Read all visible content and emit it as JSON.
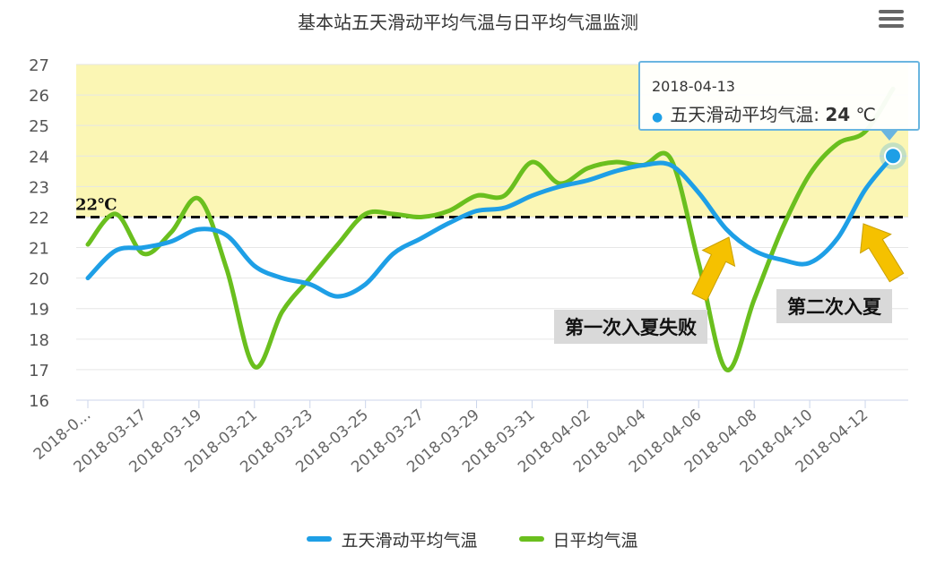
{
  "chart_data": {
    "type": "line",
    "title": "基本站五天滑动平均气温与日平均气温监测",
    "x": [
      "2018-03-15",
      "2018-03-16",
      "2018-03-17",
      "2018-03-18",
      "2018-03-19",
      "2018-03-20",
      "2018-03-21",
      "2018-03-22",
      "2018-03-23",
      "2018-03-24",
      "2018-03-25",
      "2018-03-26",
      "2018-03-27",
      "2018-03-28",
      "2018-03-29",
      "2018-03-30",
      "2018-03-31",
      "2018-04-01",
      "2018-04-02",
      "2018-04-03",
      "2018-04-04",
      "2018-04-05",
      "2018-04-06",
      "2018-04-07",
      "2018-04-08",
      "2018-04-09",
      "2018-04-10",
      "2018-04-11",
      "2018-04-12",
      "2018-04-13"
    ],
    "x_tick_labels": [
      "2018-0...",
      "2018-03-17",
      "2018-03-19",
      "2018-03-21",
      "2018-03-23",
      "2018-03-25",
      "2018-03-27",
      "2018-03-29",
      "2018-03-31",
      "2018-04-02",
      "2018-04-04",
      "2018-04-06",
      "2018-04-08",
      "2018-04-10",
      "2018-04-12"
    ],
    "ylim": [
      16,
      27
    ],
    "yticks": [
      16,
      17,
      18,
      19,
      20,
      21,
      22,
      23,
      24,
      25,
      26,
      27
    ],
    "series": [
      {
        "name": "五天滑动平均气温",
        "color": "#1e9fe6",
        "values": [
          20.0,
          20.9,
          21.0,
          21.2,
          21.6,
          21.4,
          20.4,
          20.0,
          19.8,
          19.4,
          19.8,
          20.8,
          21.3,
          21.8,
          22.2,
          22.3,
          22.7,
          23.0,
          23.2,
          23.5,
          23.7,
          23.7,
          22.8,
          21.6,
          20.9,
          20.6,
          20.5,
          21.3,
          22.9,
          24.0
        ]
      },
      {
        "name": "日平均气温",
        "color": "#6abf1e",
        "values": [
          21.1,
          22.1,
          20.8,
          21.5,
          22.6,
          20.3,
          17.1,
          18.9,
          20.0,
          21.1,
          22.1,
          22.1,
          22.0,
          22.2,
          22.7,
          22.7,
          23.8,
          23.1,
          23.6,
          23.8,
          23.7,
          23.9,
          20.5,
          17.0,
          19.3,
          21.6,
          23.4,
          24.4,
          24.8,
          26.2
        ]
      }
    ],
    "threshold": {
      "value": 22,
      "label": "22℃"
    },
    "highlight_band": {
      "from": 22,
      "to": 27,
      "color": "#fbf6b4"
    },
    "grid": true,
    "legend_position": "bottom-center"
  },
  "menu_icon": "hamburger-menu-icon",
  "tooltip": {
    "date": "2018-04-13",
    "series": "五天滑动平均气温",
    "separator": ":",
    "value": "24",
    "unit": "℃"
  },
  "annotations": [
    {
      "text": "第一次入夏失败",
      "points_to": "2018-04-07",
      "arrow_color": "#f5c100"
    },
    {
      "text": "第二次入夏",
      "points_to": "2018-04-12",
      "arrow_color": "#f5c100"
    }
  ],
  "legend": [
    {
      "label": "五天滑动平均气温",
      "color": "#1e9fe6"
    },
    {
      "label": "日平均气温",
      "color": "#6abf1e"
    }
  ]
}
